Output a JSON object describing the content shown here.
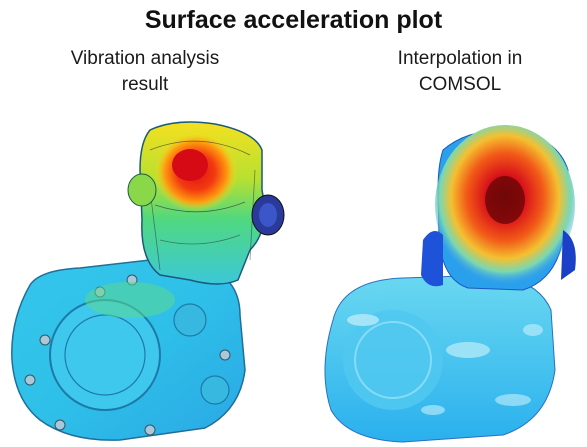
{
  "title": "Surface acceleration plot",
  "panels": [
    {
      "caption_line1": "Vibration analysis",
      "caption_line2": "result"
    },
    {
      "caption_line1": "Interpolation in",
      "caption_line2": "COMSOL"
    }
  ],
  "colors": {
    "hot": "#e0101a",
    "warm": "#ff8a10",
    "mid": "#f2e020",
    "cool": "#30d890",
    "cold": "#2ab6ee",
    "deep": "#1a5fe0"
  }
}
